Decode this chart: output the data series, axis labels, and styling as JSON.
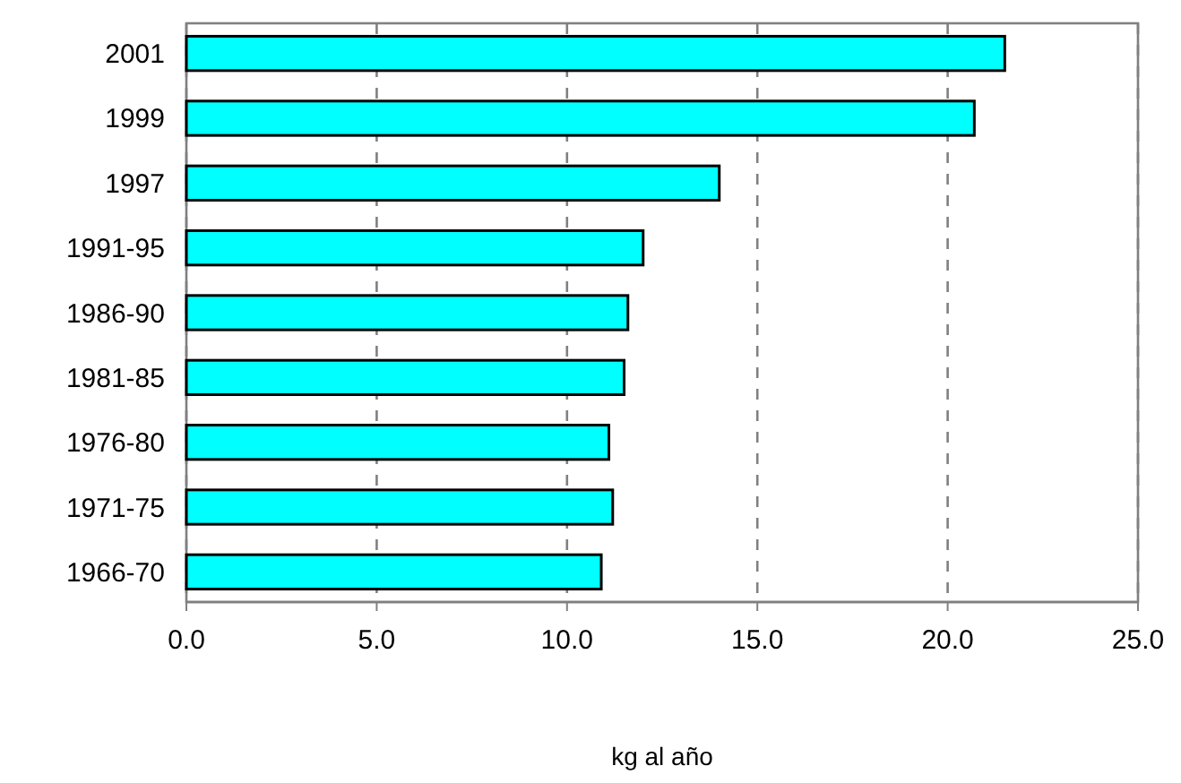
{
  "chart_data": {
    "type": "bar",
    "orientation": "horizontal",
    "xlabel": "kg al año",
    "categories": [
      "2001",
      "1999",
      "1997",
      "1991-95",
      "1986-90",
      "1981-85",
      "1976-80",
      "1971-75",
      "1966-70"
    ],
    "values": [
      21.5,
      20.7,
      14.0,
      12.0,
      11.6,
      11.5,
      11.1,
      11.2,
      10.9
    ],
    "color": "#00ffff",
    "xlim": [
      0,
      25
    ],
    "xticks": [
      {
        "value": 0,
        "label": "0.0"
      },
      {
        "value": 5,
        "label": "5.0"
      },
      {
        "value": 10,
        "label": "10.0"
      },
      {
        "value": 15,
        "label": "15.0"
      },
      {
        "value": 20,
        "label": "20.0"
      },
      {
        "value": 25,
        "label": "25.0"
      }
    ],
    "grid": "x"
  }
}
